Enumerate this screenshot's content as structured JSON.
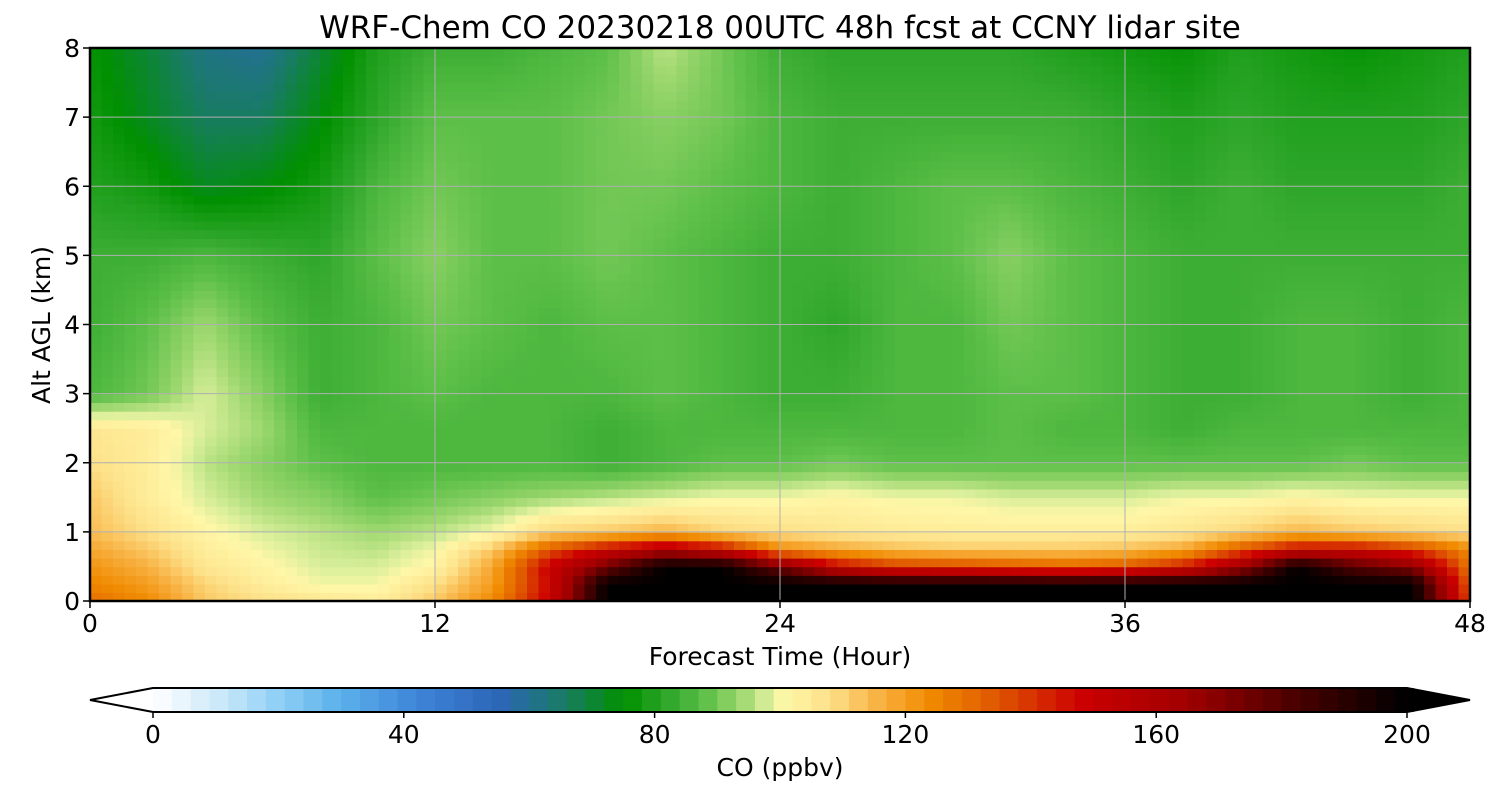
{
  "chart_data": {
    "type": "heatmap",
    "title": "WRF-Chem CO  20230218 00UTC 48h fcst at CCNY lidar site",
    "xlabel": "Forecast Time (Hour)",
    "ylabel": "Alt AGL (km)",
    "xlim": [
      0,
      48
    ],
    "ylim": [
      0,
      8
    ],
    "xticks": [
      0,
      12,
      24,
      36,
      48
    ],
    "yticks": [
      0,
      1,
      2,
      3,
      4,
      5,
      6,
      7,
      8
    ],
    "grid": true,
    "colorbar": {
      "label": "CO  (ppbv)",
      "min": 0,
      "max": 200,
      "ticks": [
        0,
        40,
        80,
        120,
        160,
        200
      ],
      "extend": "both",
      "stops": [
        {
          "v": 0,
          "c": "#ffffff"
        },
        {
          "v": 10,
          "c": "#cfeafa"
        },
        {
          "v": 20,
          "c": "#8fd0f5"
        },
        {
          "v": 30,
          "c": "#5ab0ea"
        },
        {
          "v": 42,
          "c": "#3f85d8"
        },
        {
          "v": 55,
          "c": "#2c66b8"
        },
        {
          "v": 65,
          "c": "#1a7a6a"
        },
        {
          "v": 75,
          "c": "#009000"
        },
        {
          "v": 82,
          "c": "#2ea62a"
        },
        {
          "v": 88,
          "c": "#5cbf48"
        },
        {
          "v": 94,
          "c": "#9fd870"
        },
        {
          "v": 98,
          "c": "#d8ee9a"
        },
        {
          "v": 101,
          "c": "#fff7a8"
        },
        {
          "v": 108,
          "c": "#fde088"
        },
        {
          "v": 116,
          "c": "#f8b040"
        },
        {
          "v": 124,
          "c": "#f08a00"
        },
        {
          "v": 134,
          "c": "#e05a00"
        },
        {
          "v": 148,
          "c": "#cc0000"
        },
        {
          "v": 165,
          "c": "#a00000"
        },
        {
          "v": 182,
          "c": "#4a0000"
        },
        {
          "v": 200,
          "c": "#000000"
        }
      ]
    },
    "time_hours": [
      0,
      2,
      4,
      6,
      8,
      10,
      12,
      14,
      16,
      18,
      20,
      22,
      24,
      26,
      28,
      30,
      32,
      34,
      36,
      38,
      40,
      42,
      44,
      46,
      48
    ],
    "altitudes_km": [
      0,
      0.25,
      0.5,
      0.75,
      1.0,
      1.5,
      2.0,
      2.5,
      3.0,
      4.0,
      5.0,
      6.0,
      7.0,
      8.0
    ],
    "co_ppbv": [
      [
        130,
        124,
        112,
        108,
        106,
        104,
        112,
        124,
        150,
        200,
        200,
        200,
        200,
        200,
        200,
        200,
        200,
        200,
        200,
        200,
        200,
        200,
        200,
        200,
        136
      ],
      [
        125,
        120,
        110,
        104,
        100,
        100,
        108,
        120,
        148,
        200,
        200,
        200,
        200,
        200,
        200,
        200,
        200,
        200,
        200,
        200,
        200,
        200,
        200,
        200,
        132
      ],
      [
        122,
        116,
        106,
        102,
        98,
        98,
        102,
        118,
        150,
        175,
        200,
        200,
        175,
        150,
        140,
        138,
        135,
        132,
        135,
        145,
        165,
        200,
        180,
        170,
        128
      ],
      [
        118,
        112,
        104,
        100,
        97,
        96,
        100,
        112,
        135,
        150,
        160,
        150,
        124,
        118,
        114,
        112,
        112,
        112,
        114,
        118,
        135,
        150,
        150,
        140,
        124
      ],
      [
        114,
        108,
        102,
        98,
        96,
        94,
        96,
        100,
        110,
        112,
        116,
        110,
        108,
        106,
        105,
        104,
        104,
        104,
        104,
        106,
        110,
        115,
        112,
        110,
        108
      ],
      [
        112,
        104,
        98,
        94,
        92,
        88,
        90,
        92,
        94,
        96,
        98,
        100,
        100,
        102,
        100,
        100,
        98,
        98,
        98,
        100,
        100,
        102,
        100,
        100,
        100
      ],
      [
        108,
        104,
        96,
        92,
        88,
        86,
        86,
        86,
        86,
        84,
        86,
        88,
        88,
        90,
        88,
        88,
        88,
        88,
        88,
        88,
        88,
        88,
        90,
        88,
        88
      ],
      [
        106,
        104,
        98,
        94,
        86,
        86,
        86,
        86,
        86,
        84,
        86,
        86,
        86,
        86,
        86,
        86,
        88,
        86,
        86,
        84,
        86,
        86,
        86,
        86,
        86
      ],
      [
        86,
        90,
        98,
        92,
        84,
        86,
        88,
        86,
        86,
        86,
        88,
        86,
        84,
        84,
        86,
        86,
        88,
        88,
        86,
        84,
        84,
        86,
        86,
        84,
        86
      ],
      [
        84,
        88,
        94,
        88,
        84,
        86,
        90,
        88,
        86,
        88,
        88,
        86,
        84,
        82,
        86,
        86,
        90,
        88,
        86,
        84,
        84,
        86,
        86,
        84,
        86
      ],
      [
        84,
        84,
        86,
        84,
        82,
        88,
        92,
        88,
        88,
        90,
        88,
        86,
        84,
        84,
        86,
        88,
        92,
        88,
        86,
        84,
        84,
        84,
        84,
        84,
        84
      ],
      [
        80,
        78,
        72,
        74,
        78,
        86,
        90,
        88,
        88,
        90,
        90,
        88,
        86,
        84,
        86,
        88,
        88,
        86,
        84,
        82,
        84,
        82,
        82,
        82,
        84
      ],
      [
        78,
        72,
        66,
        66,
        74,
        82,
        88,
        88,
        88,
        90,
        92,
        90,
        86,
        84,
        84,
        84,
        84,
        84,
        82,
        80,
        82,
        80,
        80,
        80,
        82
      ],
      [
        76,
        70,
        62,
        60,
        70,
        80,
        84,
        84,
        86,
        88,
        96,
        90,
        84,
        82,
        82,
        82,
        82,
        80,
        78,
        76,
        80,
        78,
        76,
        78,
        80
      ]
    ]
  }
}
